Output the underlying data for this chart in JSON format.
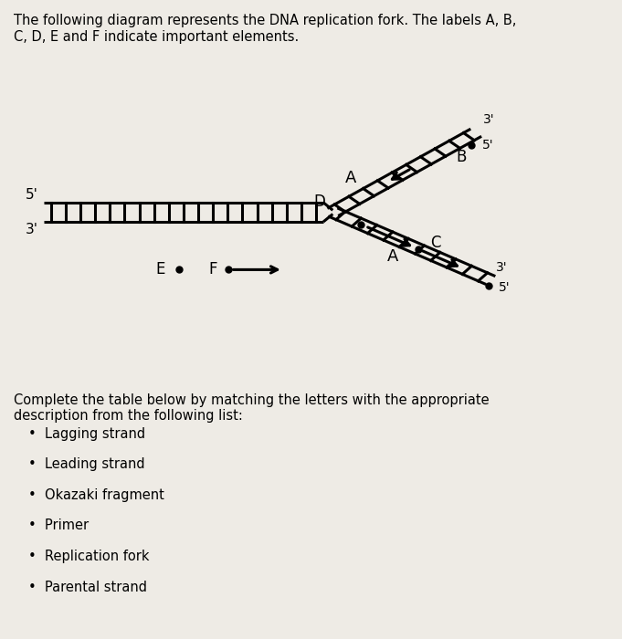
{
  "bg_color": "#eeebe5",
  "title_text1": "The following diagram represents the DNA replication fork. The labels A, B,",
  "title_text2": "C, D, E and F indicate important elements.",
  "bottom_text": "Complete the table below by matching the letters with the appropriate\ndescription from the following list:",
  "bullet_items": [
    "Lagging strand",
    "Leading strand",
    "Okazaki fragment",
    "Primer",
    "Replication fork",
    "Parental strand"
  ],
  "line_color": "#000000",
  "lw": 2.2,
  "lw_thin": 1.8
}
